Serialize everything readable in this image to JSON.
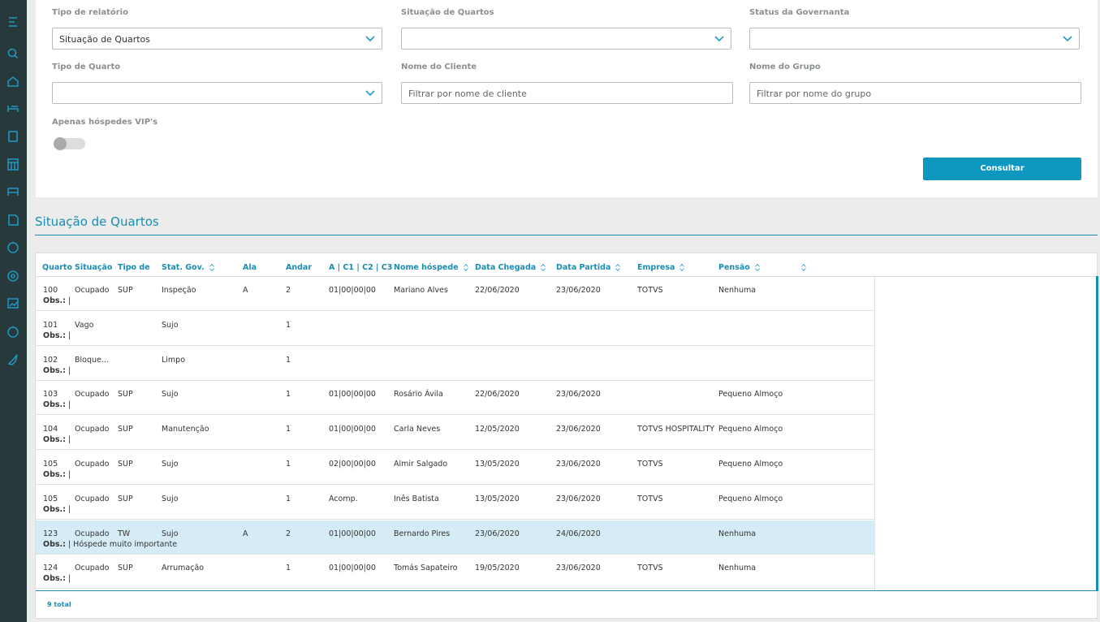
{
  "filters": [
    {
      "label": "Tipo de relatório",
      "kind": "select",
      "value": "Situação de Quartos"
    },
    {
      "label": "Situação de Quartos",
      "kind": "select"
    },
    {
      "label": "Status da Governanta",
      "kind": "select"
    },
    {
      "label": "Tipo de Quarto",
      "kind": "select"
    },
    {
      "label": "Nome do Cliente",
      "kind": "text",
      "placeholder": "Filtrar por nome de cliente"
    },
    {
      "label": "Nome do Grupo",
      "kind": "text",
      "placeholder": "Filtrar por nome do grupo"
    }
  ],
  "vip_label": "Apenas hóspedes VIP's",
  "button": "Consultar",
  "section_title": "Situação de Quartos",
  "table": {
    "columns": [
      "Quarto",
      "Situação",
      "Tipo de",
      "Stat. Gov.",
      "Ala",
      "Andar",
      "A | C1 | C2 | C3",
      "Nome hóspede",
      "Data Chegada",
      "Data Partida",
      "Empresa",
      "Pensão"
    ],
    "obs_label": "Obs.:",
    "selected_row": 7,
    "rows": [
      {
        "cells": [
          "100",
          "Ocupado",
          "SUP",
          "Inspeção",
          "A",
          "2",
          "01|00|00|00",
          "Mariano Alves",
          "22/06/2020",
          "23/06/2020",
          "TOTVS",
          "Nenhuma"
        ],
        "obs": "|"
      },
      {
        "cells": [
          "101",
          "Vago",
          null,
          "Sujo",
          null,
          "1",
          null,
          null,
          null,
          null,
          null,
          null
        ],
        "obs": "|"
      },
      {
        "cells": [
          "102",
          "Bloque...",
          null,
          "Limpo",
          null,
          "1",
          null,
          null,
          null,
          null,
          null,
          null
        ],
        "obs": "|"
      },
      {
        "cells": [
          "103",
          "Ocupado",
          "SUP",
          "Sujo",
          null,
          "1",
          "01|00|00|00",
          "Rosário Ávila",
          "22/06/2020",
          "23/06/2020",
          null,
          "Pequeno Almoço"
        ],
        "obs": "|"
      },
      {
        "cells": [
          "104",
          "Ocupado",
          "SUP",
          "Manutenção",
          null,
          "1",
          "01|00|00|00",
          "Carla Neves",
          "12/05/2020",
          "23/06/2020",
          "TOTVS HOSPITALITY",
          "Pequeno Almoço"
        ],
        "obs": "|"
      },
      {
        "cells": [
          "105",
          "Ocupado",
          "SUP",
          "Sujo",
          null,
          "1",
          "02|00|00|00",
          "Almir Salgado",
          "13/05/2020",
          "23/06/2020",
          "TOTVS",
          "Pequeno Almoço"
        ],
        "obs": "|"
      },
      {
        "cells": [
          "105",
          "Ocupado",
          "SUP",
          "Sujo",
          null,
          "1",
          "Acomp.",
          "Inês Batista",
          "13/05/2020",
          "23/06/2020",
          "TOTVS",
          "Pequeno Almoço"
        ],
        "obs": "|"
      },
      {
        "cells": [
          "123",
          "Ocupado",
          "TW",
          "Sujo",
          "A",
          "2",
          "01|00|00|00",
          "Bernardo Pires",
          "23/06/2020",
          "24/06/2020",
          null,
          "Nenhuma"
        ],
        "obs": "| Hóspede muito importante"
      },
      {
        "cells": [
          "124",
          "Ocupado",
          "SUP",
          "Arrumação",
          null,
          "1",
          "01|00|00|00",
          "Tomás Sapateiro",
          "19/05/2020",
          "23/06/2020",
          "TOTVS",
          "Nenhuma"
        ],
        "obs": "|"
      }
    ],
    "total": "9 total"
  }
}
